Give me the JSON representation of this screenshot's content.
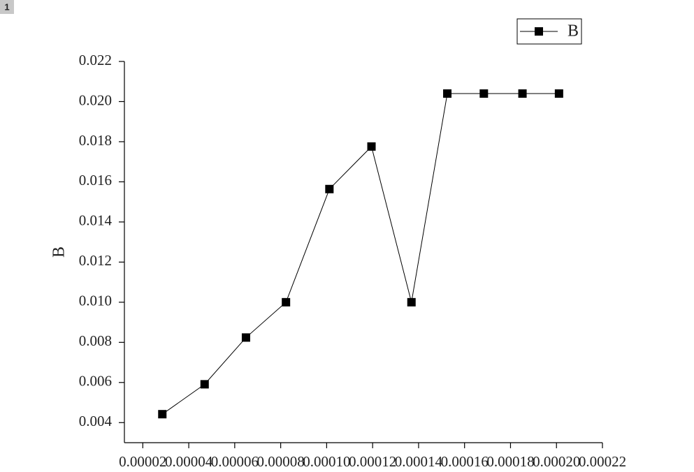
{
  "panel_label": "1",
  "chart_data": {
    "type": "line",
    "y_label": "B",
    "legend_position": "upper right",
    "series": [
      {
        "name": "B",
        "color": "#000000",
        "x": [
          2.85e-05,
          4.69e-05,
          6.49e-05,
          8.23e-05,
          0.0001012,
          0.0001195,
          0.0001369,
          0.0001525,
          0.0001684,
          0.0001852,
          0.0002011
        ],
        "values": [
          0.00442,
          0.00591,
          0.00824,
          0.01,
          0.01564,
          0.01776,
          0.01,
          0.0204,
          0.0204,
          0.0204,
          0.0204
        ]
      }
    ],
    "xlim": [
      1.2e-05,
      0.00022
    ],
    "ylim": [
      0.003,
      0.022
    ],
    "xticks": [
      {
        "value": 2e-05,
        "label": "0.00002"
      },
      {
        "value": 4e-05,
        "label": "0.00004"
      },
      {
        "value": 6e-05,
        "label": "0.00006"
      },
      {
        "value": 8e-05,
        "label": "0.00008"
      },
      {
        "value": 0.0001,
        "label": "0.00010"
      },
      {
        "value": 0.00012,
        "label": "0.00012"
      },
      {
        "value": 0.00014,
        "label": "0.00014"
      },
      {
        "value": 0.00016,
        "label": "0.00016"
      },
      {
        "value": 0.00018,
        "label": "0.00018"
      },
      {
        "value": 0.0002,
        "label": "0.00020"
      },
      {
        "value": 0.00022,
        "label": "0.00022"
      }
    ],
    "yticks": [
      {
        "value": 0.004,
        "label": "0.004"
      },
      {
        "value": 0.006,
        "label": "0.006"
      },
      {
        "value": 0.008,
        "label": "0.008"
      },
      {
        "value": 0.01,
        "label": "0.010"
      },
      {
        "value": 0.012,
        "label": "0.012"
      },
      {
        "value": 0.014,
        "label": "0.014"
      },
      {
        "value": 0.016,
        "label": "0.016"
      },
      {
        "value": 0.018,
        "label": "0.018"
      },
      {
        "value": 0.02,
        "label": "0.020"
      },
      {
        "value": 0.022,
        "label": "0.022"
      }
    ]
  }
}
